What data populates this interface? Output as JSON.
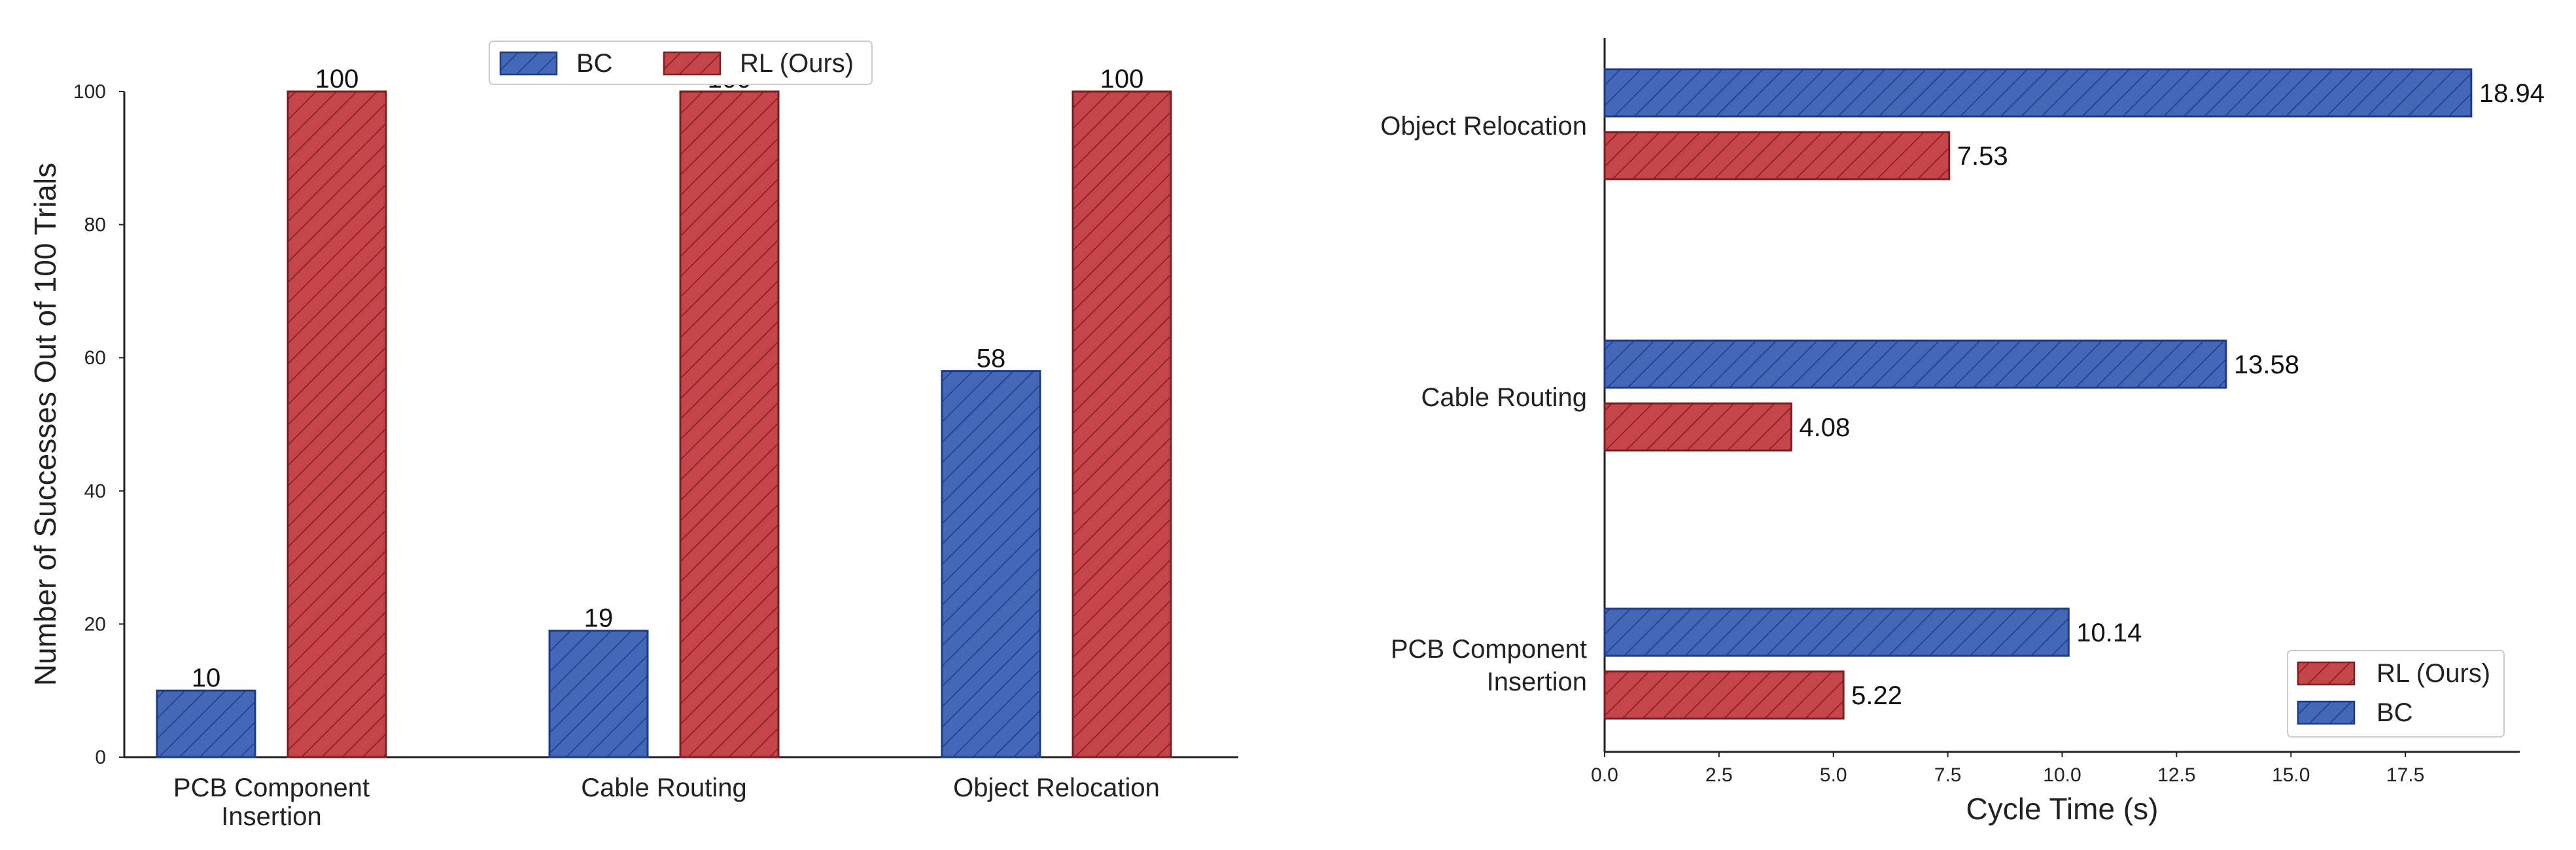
{
  "colors": {
    "bc": "#4468b8",
    "bc_edge": "#1f3a8a",
    "rl": "#c6454b",
    "rl_edge": "#7e1d22"
  },
  "chart_data": [
    {
      "type": "bar",
      "orientation": "vertical",
      "categories": [
        "PCB Component\nInsertion",
        "Cable Routing",
        "Object Relocation"
      ],
      "series": [
        {
          "name": "BC",
          "values": [
            10,
            19,
            58
          ]
        },
        {
          "name": "RL (Ours)",
          "values": [
            100,
            100,
            100
          ]
        }
      ],
      "ylabel": "Number of Successes Out of 100 Trials",
      "xlabel": "",
      "ylim": [
        0,
        100
      ],
      "yticks": [
        0,
        20,
        40,
        60,
        80,
        100
      ],
      "legend": "top-center",
      "grid": false,
      "data_labels": true
    },
    {
      "type": "bar",
      "orientation": "horizontal",
      "categories": [
        "PCB Component\nInsertion",
        "Cable Routing",
        "Object Relocation"
      ],
      "series": [
        {
          "name": "BC",
          "values": [
            10.14,
            13.58,
            18.94
          ]
        },
        {
          "name": "RL (Ours)",
          "values": [
            5.22,
            4.08,
            7.53
          ]
        }
      ],
      "xlabel": "Cycle Time (s)",
      "ylabel": "",
      "xlim": [
        0,
        20
      ],
      "xticks": [
        "0.0",
        "2.5",
        "5.0",
        "7.5",
        "10.0",
        "12.5",
        "15.0",
        "17.5"
      ],
      "legend": "bottom-right",
      "legend_order": [
        "RL (Ours)",
        "BC"
      ],
      "grid": false,
      "data_labels": true
    }
  ]
}
